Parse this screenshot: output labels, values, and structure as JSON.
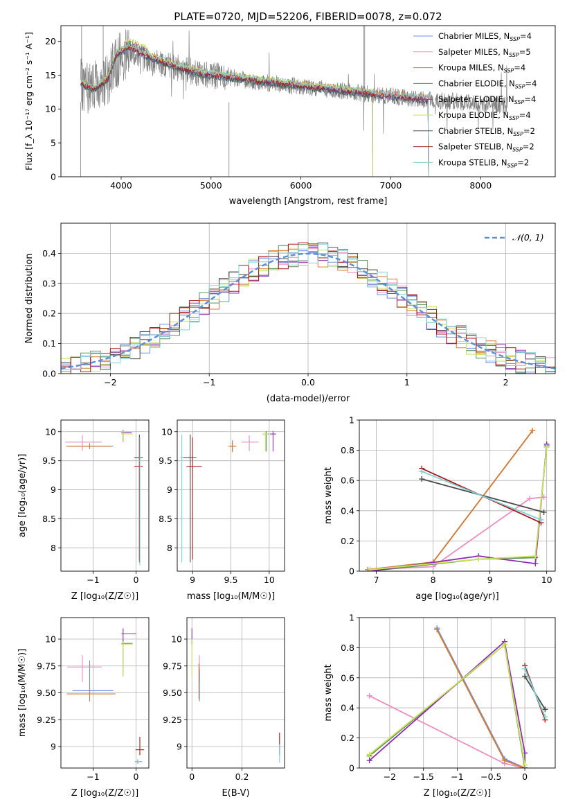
{
  "figure": {
    "title": "PLATE=0720, MJD=52206, FIBERID=0078, z=0.072"
  },
  "colors": {
    "chabrier_miles": "#6a8fe0",
    "salpeter_miles": "#ea8ec0",
    "kroupa_miles": "#d87c2e",
    "chabrier_elodie": "#5b8f5b",
    "salpeter_elodie": "#8e2fb0",
    "kroupa_elodie": "#c9e35a",
    "chabrier_stelib": "#4a4a4a",
    "salpeter_stelib": "#a81a1a",
    "kroupa_stelib": "#7fd1d6",
    "data_grey": "#808080",
    "normal_curve": "#5b8fd6",
    "grid": "#b0b0b0"
  },
  "chart_data": [
    {
      "panel": "spectrum",
      "type": "line",
      "title": "PLATE=0720, MJD=52206, FIBERID=0078, z=0.072",
      "xlabel": "wavelength [Angstrom, rest frame]",
      "ylabel": "Flux [f_λ 10⁻¹⁷ erg cm⁻² s⁻¹ A⁻¹]",
      "xlim": [
        3330,
        8830
      ],
      "ylim": [
        0,
        22.3
      ],
      "xticks": [
        4000,
        5000,
        6000,
        7000,
        8000
      ],
      "yticks": [
        0,
        5,
        10,
        15,
        20
      ],
      "grid": false,
      "legend_position": "top-right",
      "legend": [
        {
          "label": "Chabrier MILES, N",
          "sub": "SSP",
          "suffix": "=4",
          "color_key": "chabrier_miles"
        },
        {
          "label": "Salpeter MILES, N",
          "sub": "SSP",
          "suffix": "=5",
          "color_key": "salpeter_miles"
        },
        {
          "label": "Kroupa MILES, N",
          "sub": "SSP",
          "suffix": "=4",
          "color_key": "kroupa_miles"
        },
        {
          "label": "Chabrier ELODIE, N",
          "sub": "SSP",
          "suffix": "=4",
          "color_key": "chabrier_elodie"
        },
        {
          "label": "Salpeter ELODIE, N",
          "sub": "SSP",
          "suffix": "=4",
          "color_key": "salpeter_elodie"
        },
        {
          "label": "Kroupa ELODIE, N",
          "sub": "SSP",
          "suffix": "=4",
          "color_key": "kroupa_elodie"
        },
        {
          "label": "Chabrier STELIB, N",
          "sub": "SSP",
          "suffix": "=2",
          "color_key": "chabrier_stelib"
        },
        {
          "label": "Salpeter STELIB, N",
          "sub": "SSP",
          "suffix": "=2",
          "color_key": "salpeter_stelib"
        },
        {
          "label": "Kroupa STELIB, N",
          "sub": "SSP",
          "suffix": "=2",
          "color_key": "kroupa_stelib"
        }
      ],
      "data_continuum": [
        [
          3550,
          13.5
        ],
        [
          3700,
          13.2
        ],
        [
          3850,
          14.5
        ],
        [
          4000,
          18.0
        ],
        [
          4150,
          18.5
        ],
        [
          4300,
          17.0
        ],
        [
          4500,
          16.5
        ],
        [
          4700,
          15.8
        ],
        [
          4900,
          15.2
        ],
        [
          5100,
          14.8
        ],
        [
          5300,
          14.5
        ],
        [
          5500,
          14.0
        ],
        [
          5800,
          13.6
        ],
        [
          6100,
          13.2
        ],
        [
          6400,
          12.8
        ],
        [
          6700,
          12.3
        ],
        [
          7000,
          11.9
        ],
        [
          7300,
          11.5
        ],
        [
          7600,
          11.2
        ],
        [
          7900,
          10.9
        ],
        [
          8200,
          10.6
        ],
        [
          8300,
          10.5
        ]
      ],
      "model_continuum": [
        [
          3550,
          13.8
        ],
        [
          3700,
          13.0
        ],
        [
          3850,
          14.5
        ],
        [
          3950,
          18.2
        ],
        [
          4100,
          19.2
        ],
        [
          4300,
          17.8
        ],
        [
          4500,
          16.8
        ],
        [
          4700,
          15.9
        ],
        [
          4900,
          15.3
        ],
        [
          5100,
          14.9
        ],
        [
          5300,
          14.6
        ],
        [
          5500,
          14.2
        ],
        [
          5800,
          13.8
        ],
        [
          6100,
          13.3
        ],
        [
          6400,
          12.9
        ],
        [
          6700,
          12.4
        ],
        [
          7000,
          12.0
        ],
        [
          7300,
          11.6
        ],
        [
          7500,
          11.3
        ],
        [
          7700,
          11.0
        ],
        [
          7900,
          10.8
        ]
      ]
    },
    {
      "panel": "residuals",
      "type": "line",
      "xlabel": "(data-model)/error",
      "ylabel": "Normed distribution",
      "xlim": [
        -2.5,
        2.5
      ],
      "ylim": [
        0,
        0.5
      ],
      "xticks": [
        -2,
        -1,
        0,
        1,
        2
      ],
      "yticks": [
        0.0,
        0.1,
        0.2,
        0.3,
        0.4
      ],
      "grid": true,
      "legend_position": "top-right",
      "legend": [
        {
          "label": "𝒩(0, 1)",
          "color_key": "normal_curve"
        }
      ],
      "bin_width": 0.1
    },
    {
      "panel": "Z_vs_age",
      "type": "scatter",
      "xlabel": "Z [log₁₀(Z/Z☉)]",
      "ylabel": "age  [log₁₀(age/yr)]",
      "xlim": [
        -1.75,
        0.3
      ],
      "ylim": [
        7.6,
        10.2
      ],
      "xticks": [
        -1,
        0
      ],
      "yticks": [
        8.0,
        8.5,
        9.0,
        9.5,
        10.0
      ],
      "grid": true,
      "points": [
        {
          "series": "chabrier_miles",
          "x": -1.08,
          "y": 9.75,
          "xerr": [
            0.5,
            0.55
          ],
          "yerr": [
            0.05,
            0.05
          ]
        },
        {
          "series": "salpeter_miles",
          "x": -1.25,
          "y": 9.82,
          "xerr": [
            0.4,
            0.45
          ],
          "yerr": [
            0.15,
            0.12
          ]
        },
        {
          "series": "kroupa_miles",
          "x": -1.08,
          "y": 9.75,
          "xerr": [
            0.55,
            0.5
          ],
          "yerr": [
            0.05,
            0.05
          ]
        },
        {
          "series": "chabrier_elodie",
          "x": -0.3,
          "y": 9.98,
          "xerr": [
            0.04,
            0.2
          ],
          "yerr": [
            0.15,
            0.05
          ]
        },
        {
          "series": "salpeter_elodie",
          "x": -0.3,
          "y": 9.98,
          "xerr": [
            0.04,
            0.2
          ],
          "yerr": [
            0.15,
            0.05
          ]
        },
        {
          "series": "kroupa_elodie",
          "x": -0.3,
          "y": 9.96,
          "xerr": [
            0.04,
            0.22
          ],
          "yerr": [
            0.12,
            0.06
          ]
        },
        {
          "series": "chabrier_stelib",
          "x": 0.08,
          "y": 9.55,
          "xerr": [
            0.12,
            0.08
          ],
          "yerr": [
            1.8,
            0.4
          ]
        },
        {
          "series": "salpeter_stelib",
          "x": 0.08,
          "y": 9.4,
          "xerr": [
            0.12,
            0.08
          ],
          "yerr": [
            1.6,
            0.5
          ]
        },
        {
          "series": "kroupa_stelib",
          "x": 0.09,
          "y": 9.5,
          "xerr": [
            0.02,
            0.02
          ],
          "yerr": [
            1.8,
            0.4
          ]
        }
      ]
    },
    {
      "panel": "mass_vs_age",
      "type": "scatter",
      "xlabel": "mass [log₁₀(M/M☉)]",
      "ylabel": "",
      "xlim": [
        8.8,
        10.2
      ],
      "ylim": [
        7.6,
        10.2
      ],
      "xticks": [
        9.0,
        9.5,
        10.0
      ],
      "yticks": [
        8.0,
        8.5,
        9.0,
        9.5,
        10.0
      ],
      "grid": true,
      "points": [
        {
          "series": "chabrier_miles",
          "x": 9.52,
          "y": 9.75,
          "xerr": [
            0.05,
            0.05
          ],
          "yerr": [
            0.1,
            0.1
          ]
        },
        {
          "series": "salpeter_miles",
          "x": 9.74,
          "y": 9.82,
          "xerr": [
            0.1,
            0.12
          ],
          "yerr": [
            0.15,
            0.12
          ]
        },
        {
          "series": "kroupa_miles",
          "x": 9.52,
          "y": 9.75,
          "xerr": [
            0.05,
            0.05
          ],
          "yerr": [
            0.1,
            0.1
          ]
        },
        {
          "series": "chabrier_elodie",
          "x": 9.96,
          "y": 9.96,
          "xerr": [
            0.04,
            0.04
          ],
          "yerr": [
            0.3,
            0.05
          ]
        },
        {
          "series": "salpeter_elodie",
          "x": 10.05,
          "y": 9.96,
          "xerr": [
            0.04,
            0.04
          ],
          "yerr": [
            0.3,
            0.05
          ]
        },
        {
          "series": "kroupa_elodie",
          "x": 9.95,
          "y": 9.96,
          "xerr": [
            0.04,
            0.04
          ],
          "yerr": [
            0.3,
            0.05
          ]
        },
        {
          "series": "chabrier_stelib",
          "x": 8.97,
          "y": 9.55,
          "xerr": [
            0.1,
            0.08
          ],
          "yerr": [
            1.8,
            0.4
          ]
        },
        {
          "series": "salpeter_stelib",
          "x": 9.0,
          "y": 9.4,
          "xerr": [
            0.08,
            0.12
          ],
          "yerr": [
            1.6,
            0.5
          ]
        },
        {
          "series": "kroupa_stelib",
          "x": 8.86,
          "y": 9.55,
          "xerr": [
            0.02,
            0.02
          ],
          "yerr": [
            1.8,
            0.4
          ]
        }
      ]
    },
    {
      "panel": "age_vs_weight",
      "type": "line",
      "xlabel": "age  [log₁₀(age/yr)]",
      "ylabel": "mass weight",
      "xlim": [
        6.7,
        10.15
      ],
      "ylim": [
        0,
        1.0
      ],
      "xticks": [
        7,
        8,
        9,
        10
      ],
      "yticks": [
        0.0,
        0.2,
        0.4,
        0.6,
        0.8,
        1.0
      ],
      "grid": true,
      "series": [
        {
          "name": "chabrier_miles",
          "x": [
            6.85,
            8.0,
            9.75
          ],
          "y": [
            0.01,
            0.06,
            0.93
          ]
        },
        {
          "name": "salpeter_miles",
          "x": [
            6.85,
            8.0,
            9.7,
            9.95
          ],
          "y": [
            0.01,
            0.03,
            0.48,
            0.49
          ]
        },
        {
          "name": "kroupa_miles",
          "x": [
            6.85,
            8.0,
            9.75
          ],
          "y": [
            0.01,
            0.06,
            0.93
          ]
        },
        {
          "name": "chabrier_elodie",
          "x": [
            6.9,
            8.8,
            9.8,
            10.0
          ],
          "y": [
            0.0,
            0.08,
            0.09,
            0.83
          ]
        },
        {
          "name": "salpeter_elodie",
          "x": [
            6.9,
            8.8,
            9.8,
            10.0
          ],
          "y": [
            0.0,
            0.1,
            0.05,
            0.84
          ]
        },
        {
          "name": "kroupa_elodie",
          "x": [
            6.9,
            8.8,
            9.8,
            10.0
          ],
          "y": [
            0.01,
            0.08,
            0.1,
            0.82
          ]
        },
        {
          "name": "chabrier_stelib",
          "x": [
            7.8,
            9.95
          ],
          "y": [
            0.61,
            0.39
          ]
        },
        {
          "name": "salpeter_stelib",
          "x": [
            7.8,
            9.9
          ],
          "y": [
            0.68,
            0.32
          ]
        },
        {
          "name": "kroupa_stelib",
          "x": [
            7.8,
            9.9
          ],
          "y": [
            0.66,
            0.34
          ]
        }
      ]
    },
    {
      "panel": "Z_vs_mass",
      "type": "scatter",
      "xlabel": "Z [log₁₀(Z/Z☉)]",
      "ylabel": "mass [log₁₀(M/M☉)]",
      "xlim": [
        -1.75,
        0.3
      ],
      "ylim": [
        8.8,
        10.2
      ],
      "xticks": [
        -1,
        0
      ],
      "yticks": [
        9.0,
        9.25,
        9.5,
        9.75,
        10.0
      ],
      "grid": true,
      "points": [
        {
          "series": "chabrier_miles",
          "x": -1.08,
          "y": 9.52,
          "xerr": [
            0.4,
            0.55
          ],
          "yerr": [
            0.1,
            0.28
          ]
        },
        {
          "series": "salpeter_miles",
          "x": -1.25,
          "y": 9.74,
          "xerr": [
            0.35,
            0.45
          ],
          "yerr": [
            0.14,
            0.11
          ]
        },
        {
          "series": "kroupa_miles",
          "x": -1.08,
          "y": 9.49,
          "xerr": [
            0.53,
            0.6
          ],
          "yerr": [
            0.05,
            0.05
          ]
        },
        {
          "series": "chabrier_elodie",
          "x": -0.3,
          "y": 9.96,
          "xerr": [
            0.04,
            0.22
          ],
          "yerr": [
            0.3,
            0.04
          ]
        },
        {
          "series": "salpeter_elodie",
          "x": -0.3,
          "y": 10.05,
          "xerr": [
            0.04,
            0.3
          ],
          "yerr": [
            0.1,
            0.05
          ]
        },
        {
          "series": "kroupa_elodie",
          "x": -0.3,
          "y": 9.95,
          "xerr": [
            0.04,
            0.22
          ],
          "yerr": [
            0.3,
            0.03
          ]
        },
        {
          "series": "chabrier_stelib",
          "x": 0.04,
          "y": 8.86,
          "xerr": [
            0.06,
            0.1
          ],
          "yerr": [
            0.02,
            0.02
          ]
        },
        {
          "series": "salpeter_stelib",
          "x": 0.09,
          "y": 8.97,
          "xerr": [
            0.1,
            0.1
          ],
          "yerr": [
            0.05,
            0.12
          ]
        },
        {
          "series": "kroupa_stelib",
          "x": 0.04,
          "y": 8.86,
          "xerr": [
            0.06,
            0.1
          ],
          "yerr": [
            0.02,
            0.02
          ]
        }
      ]
    },
    {
      "panel": "ebv_vs_mass",
      "type": "scatter",
      "xlabel": "E(B-V)",
      "ylabel": "",
      "xlim": [
        -0.02,
        0.37
      ],
      "ylim": [
        8.8,
        10.2
      ],
      "xticks": [
        0.0,
        0.2
      ],
      "yticks": [
        9.0,
        9.25,
        9.5,
        9.75,
        10.0
      ],
      "grid": true,
      "points": [
        {
          "series": "salpeter_elodie",
          "x": 0.0,
          "y": 10.05,
          "xerr": [
            0,
            0
          ],
          "yerr": [
            0.1,
            0.05
          ]
        },
        {
          "series": "kroupa_elodie",
          "x": 0.0,
          "y": 9.95,
          "xerr": [
            0,
            0
          ],
          "yerr": [
            0.3,
            0.05
          ]
        },
        {
          "series": "salpeter_miles",
          "x": 0.03,
          "y": 9.74,
          "xerr": [
            0,
            0
          ],
          "yerr": [
            0.14,
            0.11
          ]
        },
        {
          "series": "kroupa_miles",
          "x": 0.028,
          "y": 9.49,
          "xerr": [
            0,
            0
          ],
          "yerr": [
            0.05,
            0.28
          ]
        },
        {
          "series": "chabrier_miles",
          "x": 0.03,
          "y": 9.52,
          "xerr": [
            0,
            0
          ],
          "yerr": [
            0.1,
            0.2
          ]
        },
        {
          "series": "salpeter_stelib",
          "x": 0.35,
          "y": 8.97,
          "xerr": [
            0,
            0
          ],
          "yerr": [
            0.05,
            0.16
          ]
        },
        {
          "series": "kroupa_stelib",
          "x": 0.35,
          "y": 8.97,
          "xerr": [
            0,
            0
          ],
          "yerr": [
            0.12,
            0.05
          ]
        }
      ]
    },
    {
      "panel": "Z_vs_weight",
      "type": "line",
      "xlabel": "Z [log₁₀(Z/Z☉)]",
      "ylabel": "mass weight",
      "xlim": [
        -2.45,
        0.45
      ],
      "ylim": [
        0,
        1.0
      ],
      "xticks": [
        -2.0,
        -1.5,
        -1.0,
        -0.5,
        0.0
      ],
      "yticks": [
        0.0,
        0.2,
        0.4,
        0.6,
        0.8,
        1.0
      ],
      "grid": true,
      "series": [
        {
          "name": "chabrier_miles",
          "x": [
            -1.3,
            -0.3,
            0.0
          ],
          "y": [
            0.93,
            0.06,
            0.0
          ]
        },
        {
          "name": "salpeter_miles",
          "x": [
            -2.3,
            -0.3,
            0.0
          ],
          "y": [
            0.48,
            0.03,
            0.0
          ]
        },
        {
          "name": "kroupa_miles",
          "x": [
            -1.3,
            -0.3,
            0.0
          ],
          "y": [
            0.92,
            0.05,
            0.0
          ]
        },
        {
          "name": "chabrier_elodie",
          "x": [
            -2.3,
            -0.3,
            0.0
          ],
          "y": [
            0.08,
            0.82,
            0.0
          ]
        },
        {
          "name": "salpeter_elodie",
          "x": [
            -2.3,
            -0.3,
            0.0,
            0.0
          ],
          "y": [
            0.05,
            0.84,
            0.1,
            0.0
          ]
        },
        {
          "name": "kroupa_elodie",
          "x": [
            -2.3,
            -0.3,
            0.0
          ],
          "y": [
            0.09,
            0.82,
            0.02
          ]
        },
        {
          "name": "chabrier_stelib",
          "x": [
            0.0,
            0.3
          ],
          "y": [
            0.61,
            0.39
          ]
        },
        {
          "name": "salpeter_stelib",
          "x": [
            0.0,
            0.3
          ],
          "y": [
            0.68,
            0.32
          ]
        },
        {
          "name": "kroupa_stelib",
          "x": [
            0.0,
            0.3
          ],
          "y": [
            0.66,
            0.34
          ]
        }
      ]
    }
  ]
}
